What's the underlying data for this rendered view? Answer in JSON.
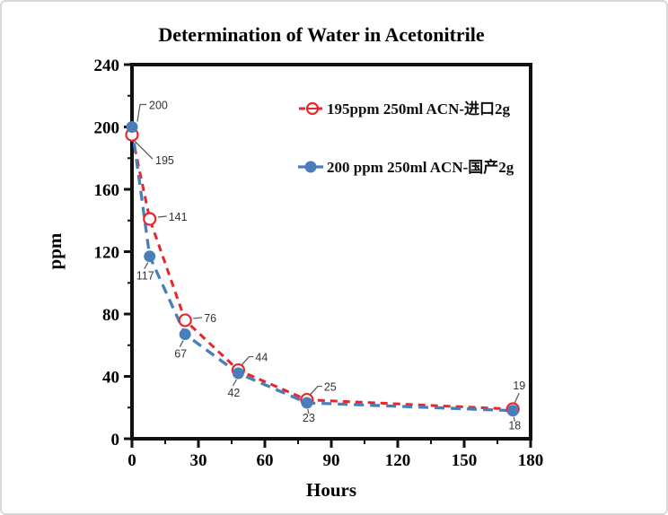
{
  "page": {
    "background": "#ffffff",
    "border_color": "#d8d8d8"
  },
  "chart_data": {
    "type": "line",
    "title": "Determination of Water in Acetonitrile",
    "xlabel": "Hours",
    "ylabel": "ppm",
    "xlim": [
      0,
      180
    ],
    "ylim": [
      0,
      240
    ],
    "x_major_ticks": [
      0,
      30,
      60,
      90,
      120,
      150,
      180
    ],
    "x_minor_step": 15,
    "y_major_ticks": [
      0,
      40,
      80,
      120,
      160,
      200,
      240
    ],
    "y_minor_step": 20,
    "grid": false,
    "axis_color": "#111111",
    "legend": {
      "position": "top-inside"
    },
    "series": [
      {
        "name": "195ppm  250ml ACN-进口2g",
        "color": "#e8262c",
        "marker": "open-circle",
        "line_style": "dashed",
        "x": [
          0,
          8,
          24,
          48,
          79,
          172
        ],
        "values": [
          195,
          141,
          76,
          44,
          25,
          19
        ],
        "point_labels": [
          "195",
          "141",
          "76",
          "44",
          "25",
          "19"
        ],
        "label_placements": [
          "below-right",
          "right",
          "right",
          "above-right",
          "above-right",
          "above"
        ]
      },
      {
        "name": "200 ppm 250ml ACN-国产2g",
        "color": "#4a7ebb",
        "marker": "filled-circle",
        "line_style": "dashed",
        "x": [
          0,
          8,
          24,
          48,
          79,
          172
        ],
        "values": [
          200,
          117,
          67,
          42,
          23,
          18
        ],
        "point_labels": [
          "200",
          "117",
          "67",
          "42",
          "23",
          "18"
        ],
        "label_placements": [
          "above-elbow",
          "below-left",
          "below-left",
          "below-left",
          "below",
          "below"
        ]
      }
    ]
  }
}
